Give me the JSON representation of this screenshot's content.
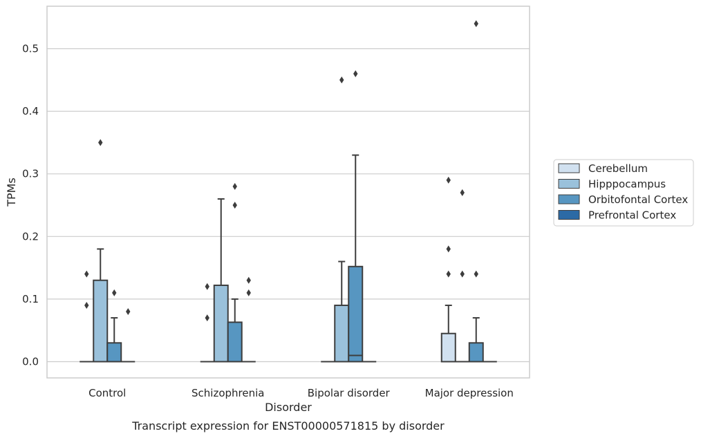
{
  "chart_data": {
    "type": "box",
    "title": "",
    "caption": "Transcript expression for ENST00000571815 by disorder",
    "xlabel": "Disorder",
    "ylabel": "TPMs",
    "ylim": [
      -0.026,
      0.568
    ],
    "yticks": [
      "0.0",
      "0.1",
      "0.2",
      "0.3",
      "0.4",
      "0.5"
    ],
    "ytick_values": [
      0.0,
      0.1,
      0.2,
      0.3,
      0.4,
      0.5
    ],
    "grid": "horizontal",
    "legend_position": "right",
    "categories": [
      "Control",
      "Schizophrenia",
      "Bipolar disorder",
      "Major depression"
    ],
    "series": [
      {
        "name": "Cerebellum",
        "color": "#d1e1f0",
        "boxes": [
          {
            "q1": 0,
            "median": 0,
            "q3": 0,
            "whisker_low": 0,
            "whisker_high": 0,
            "outliers": [
              0.09,
              0.14
            ]
          },
          {
            "q1": 0,
            "median": 0,
            "q3": 0,
            "whisker_low": 0,
            "whisker_high": 0,
            "outliers": [
              0.07,
              0.12
            ]
          },
          {
            "q1": 0,
            "median": 0,
            "q3": 0,
            "whisker_low": 0,
            "whisker_high": 0,
            "outliers": []
          },
          {
            "q1": 0,
            "median": 0,
            "q3": 0.045,
            "whisker_low": 0,
            "whisker_high": 0.09,
            "outliers": [
              0.14,
              0.18,
              0.29
            ]
          }
        ]
      },
      {
        "name": "Hipppocampus",
        "color": "#9ac1db",
        "boxes": [
          {
            "q1": 0,
            "median": 0,
            "q3": 0.13,
            "whisker_low": 0,
            "whisker_high": 0.18,
            "outliers": [
              0.35
            ]
          },
          {
            "q1": 0,
            "median": 0,
            "q3": 0.122,
            "whisker_low": 0,
            "whisker_high": 0.26,
            "outliers": []
          },
          {
            "q1": 0,
            "median": 0,
            "q3": 0.09,
            "whisker_low": 0,
            "whisker_high": 0.16,
            "outliers": [
              0.45
            ]
          },
          {
            "q1": 0,
            "median": 0,
            "q3": 0,
            "whisker_low": 0,
            "whisker_high": 0,
            "outliers": [
              0.14,
              0.27
            ]
          }
        ]
      },
      {
        "name": "Orbitofontal Cortex",
        "color": "#5796c1",
        "boxes": [
          {
            "q1": 0,
            "median": 0,
            "q3": 0.03,
            "whisker_low": 0,
            "whisker_high": 0.07,
            "outliers": [
              0.11
            ]
          },
          {
            "q1": 0,
            "median": 0,
            "q3": 0.063,
            "whisker_low": 0,
            "whisker_high": 0.1,
            "outliers": [
              0.25,
              0.28
            ]
          },
          {
            "q1": 0,
            "median": 0.01,
            "q3": 0.152,
            "whisker_low": 0,
            "whisker_high": 0.33,
            "outliers": [
              0.46
            ]
          },
          {
            "q1": 0,
            "median": 0,
            "q3": 0.03,
            "whisker_low": 0,
            "whisker_high": 0.07,
            "outliers": [
              0.14,
              0.54
            ]
          }
        ]
      },
      {
        "name": "Prefrontal Cortex",
        "color": "#2c6aa5",
        "boxes": [
          {
            "q1": 0,
            "median": 0,
            "q3": 0,
            "whisker_low": 0,
            "whisker_high": 0,
            "outliers": [
              0.08
            ]
          },
          {
            "q1": 0,
            "median": 0,
            "q3": 0,
            "whisker_low": 0,
            "whisker_high": 0,
            "outliers": [
              0.11,
              0.13
            ]
          },
          {
            "q1": 0,
            "median": 0,
            "q3": 0,
            "whisker_low": 0,
            "whisker_high": 0,
            "outliers": []
          },
          {
            "q1": 0,
            "median": 0,
            "q3": 0,
            "whisker_low": 0,
            "whisker_high": 0,
            "outliers": []
          }
        ]
      }
    ]
  }
}
